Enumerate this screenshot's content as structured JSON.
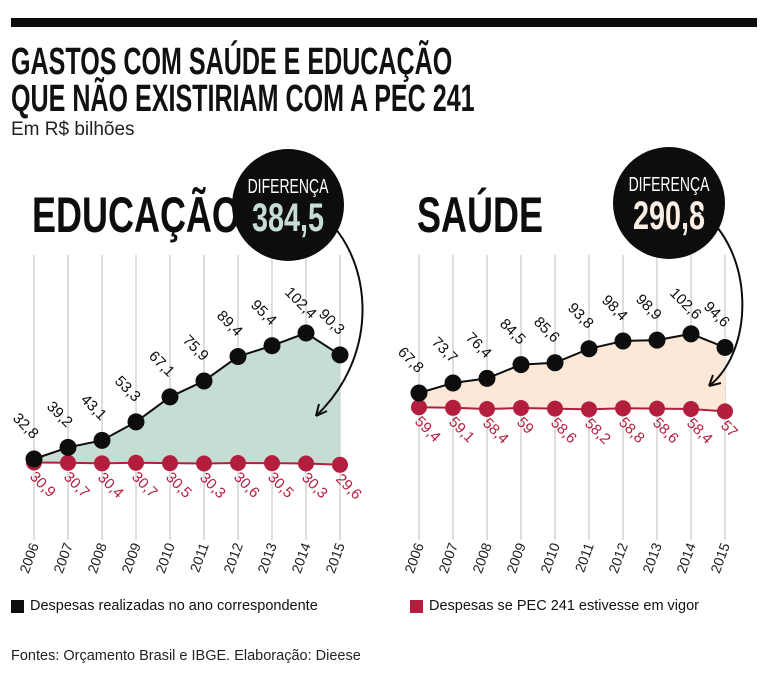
{
  "header": {
    "title_line1": "GASTOS COM SAÚDE E EDUCAÇÃO",
    "title_line2": "QUE NÃO EXISTIRIAM COM A PEC 241",
    "subtitle": "Em R$ bilhões"
  },
  "colors": {
    "realizadas": "#0d0d0d",
    "pec": "#b31e3e",
    "educacao_fill": "#c6ddd3",
    "saude_fill": "#fde8d7",
    "educacao_diff_text": "#c6ddd3",
    "saude_diff_text": "#fbeee4"
  },
  "chart_data": [
    {
      "type": "line",
      "title": "EDUCAÇÃO",
      "difference_label": "DIFERENÇA",
      "difference_value": "384,5",
      "categories": [
        "2006",
        "2007",
        "2008",
        "2009",
        "2010",
        "2011",
        "2012",
        "2013",
        "2014",
        "2015"
      ],
      "series": [
        {
          "name": "Despesas realizadas no ano correspondente",
          "values": [
            32.8,
            39.2,
            43.1,
            53.3,
            67.1,
            75.9,
            89.4,
            95.4,
            102.4,
            90.3
          ],
          "labels": [
            "32,8",
            "39,2",
            "43,1",
            "53,3",
            "67,1",
            "75,9",
            "89,4",
            "95,4",
            "102,4",
            "90,3"
          ]
        },
        {
          "name": "Despesas se PEC 241 estivesse em vigor",
          "values": [
            30.9,
            30.7,
            30.4,
            30.7,
            30.5,
            30.3,
            30.6,
            30.5,
            30.3,
            29.6
          ],
          "labels": [
            "30,9",
            "30,7",
            "30,4",
            "30,7",
            "30,5",
            "30,3",
            "30,6",
            "30,5",
            "30,3",
            "29,6"
          ]
        }
      ],
      "area_between_series": true,
      "grid": "vertical"
    },
    {
      "type": "line",
      "title": "SAÚDE",
      "difference_label": "DIFERENÇA",
      "difference_value": "290,8",
      "categories": [
        "2006",
        "2007",
        "2008",
        "2009",
        "2010",
        "2011",
        "2012",
        "2013",
        "2014",
        "2015"
      ],
      "series": [
        {
          "name": "Despesas realizadas no ano correspondente",
          "values": [
            67.8,
            73.7,
            76.4,
            84.5,
            85.6,
            93.8,
            98.4,
            98.9,
            102.6,
            94.6
          ],
          "labels": [
            "67,8",
            "73,7",
            "76,4",
            "84,5",
            "85,6",
            "93,8",
            "98,4",
            "98,9",
            "102,6",
            "94,6"
          ]
        },
        {
          "name": "Despesas se PEC 241 estivesse em vigor",
          "values": [
            59.4,
            59.1,
            58.4,
            59,
            58.6,
            58.2,
            58.8,
            58.6,
            58.4,
            57
          ],
          "labels": [
            "59,4",
            "59,1",
            "58,4",
            "59",
            "58,6",
            "58,2",
            "58,8",
            "58,6",
            "58,4",
            "57"
          ]
        }
      ],
      "area_between_series": true,
      "grid": "vertical"
    }
  ],
  "legend": {
    "realizadas": "Despesas realizadas no ano correspondente",
    "pec": "Despesas se PEC 241 estivesse em vigor"
  },
  "footer": "Fontes: Orçamento Brasil e IBGE. Elaboração: Dieese"
}
